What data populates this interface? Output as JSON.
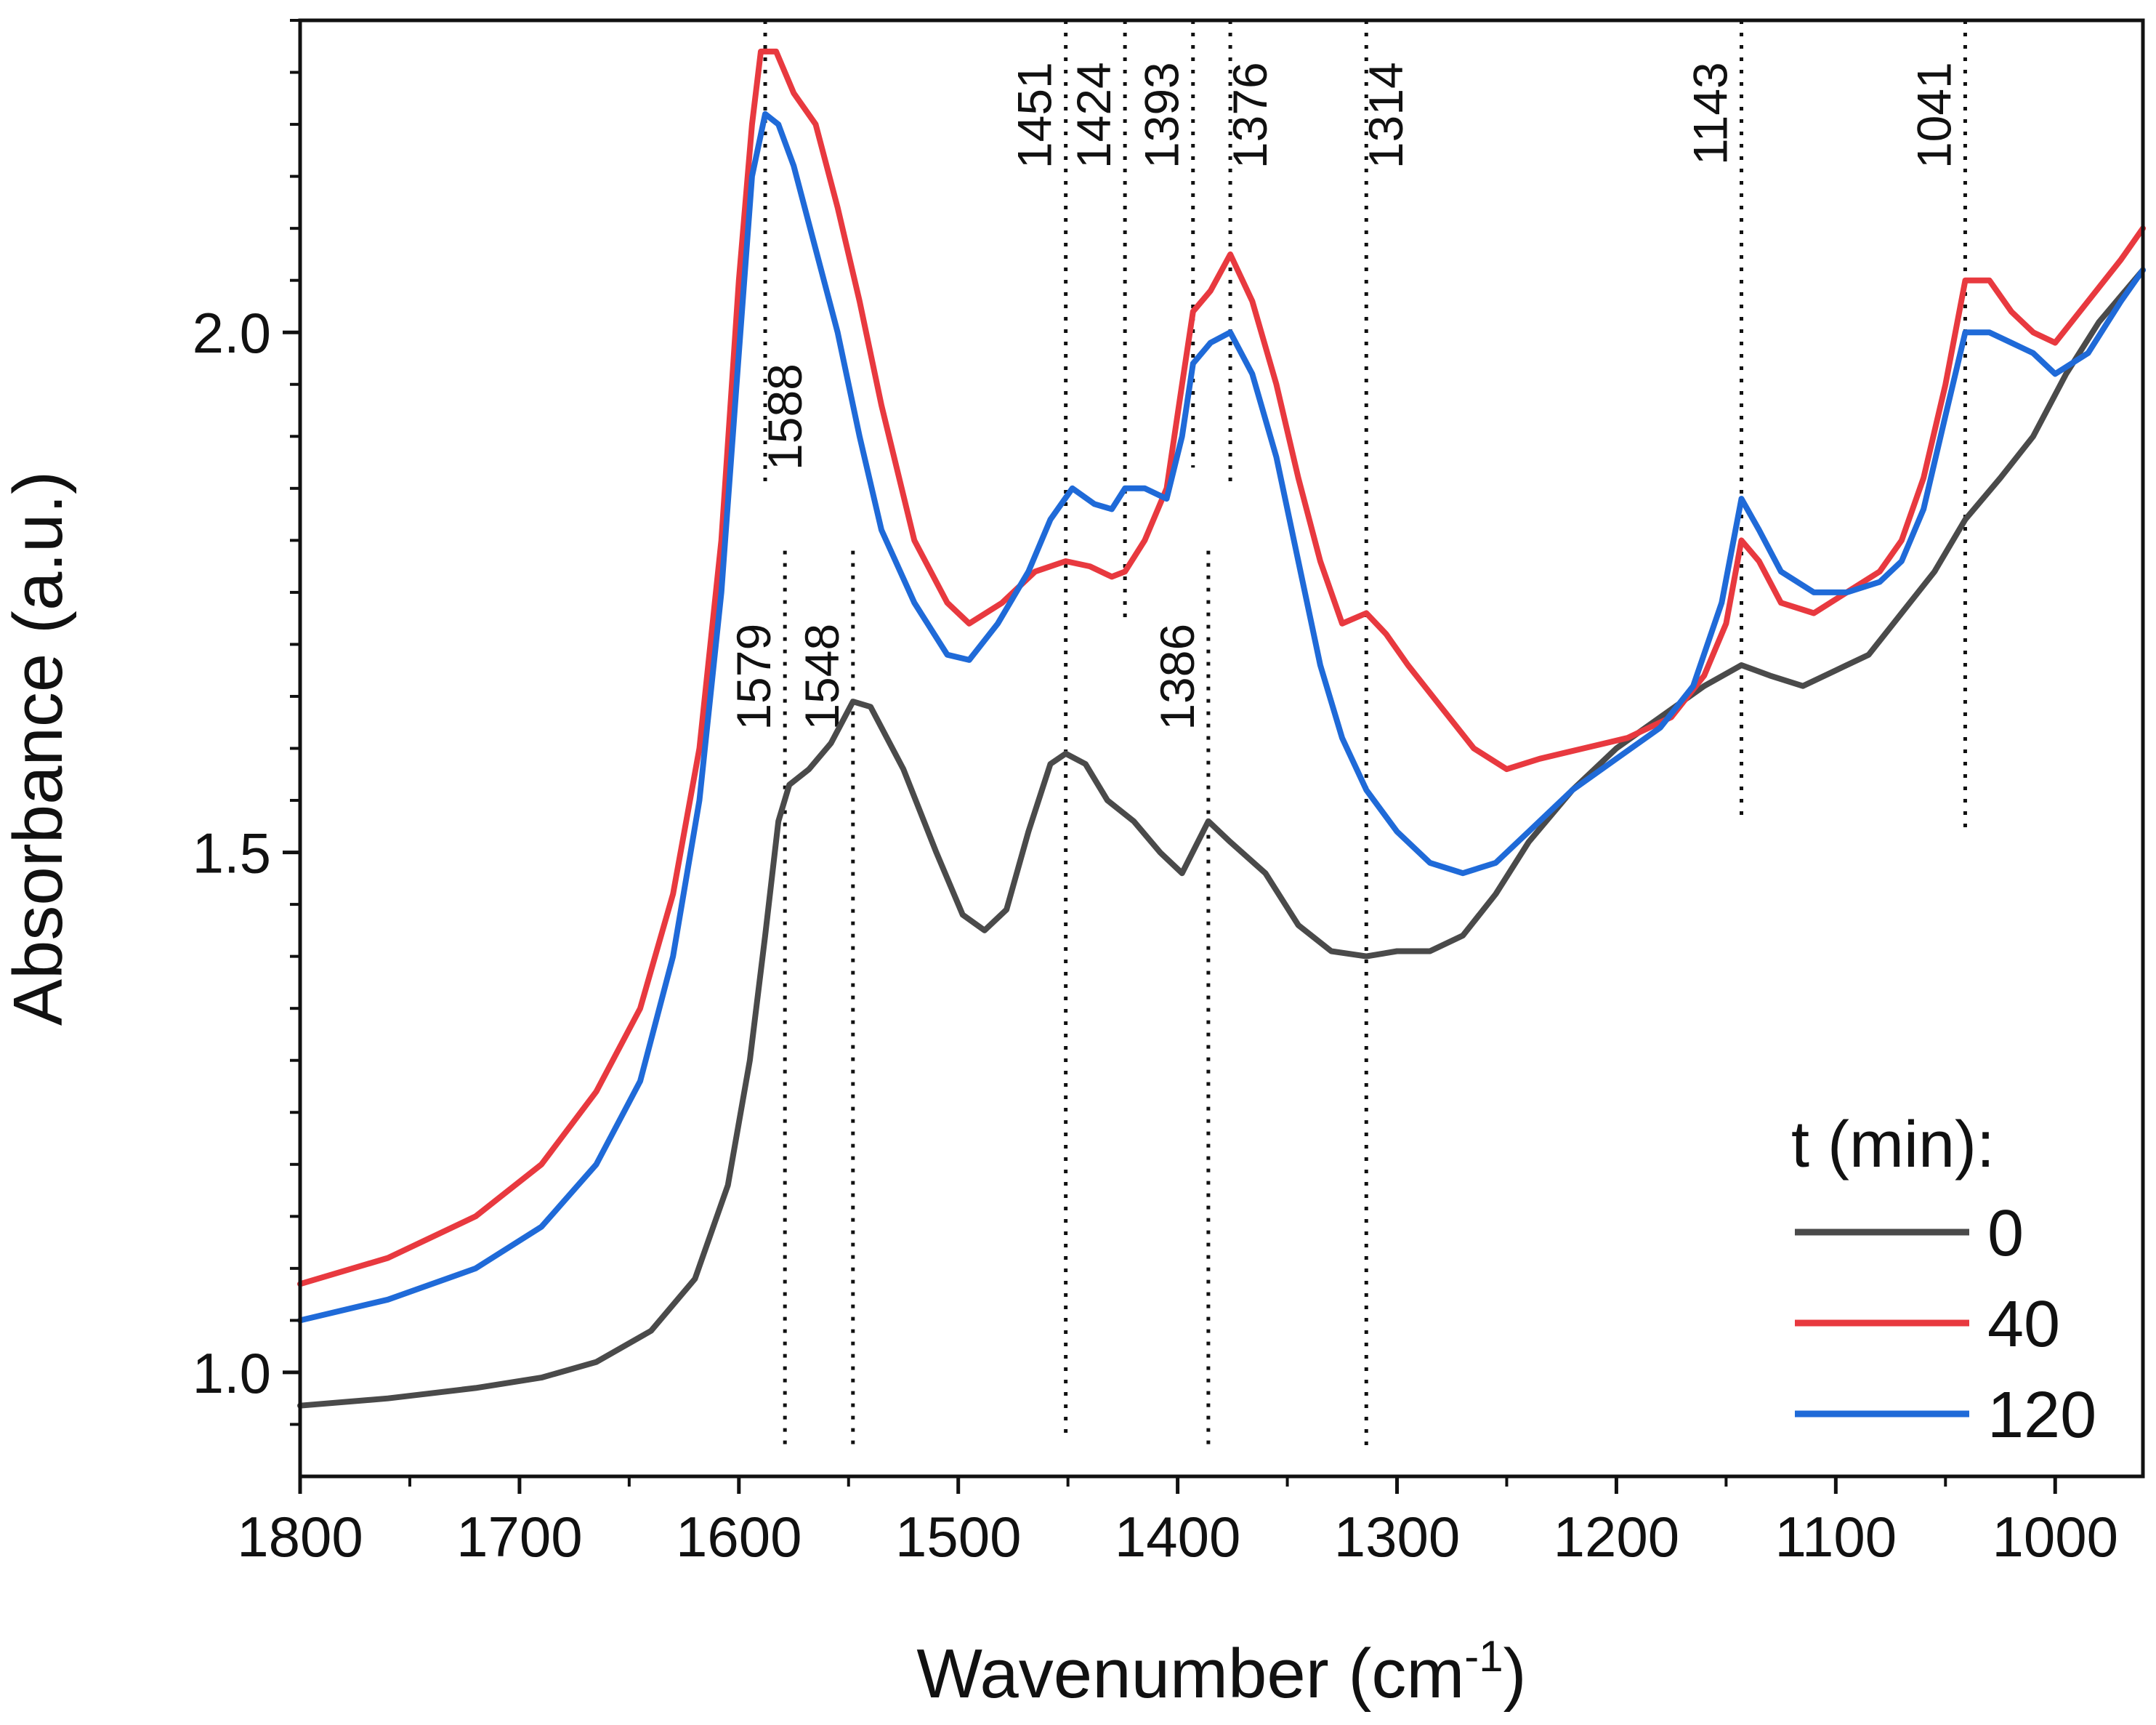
{
  "chart_data": {
    "type": "line",
    "title": "",
    "xlabel": "Wavenumber (cm",
    "xlabel_sup": "-1",
    "xlabel_close": ")",
    "ylabel": "Absorbance (a.u.)",
    "xlim": [
      1800,
      960
    ],
    "ylim": [
      0.9,
      2.3
    ],
    "x_ticks": [
      1800,
      1700,
      1600,
      1500,
      1400,
      1300,
      1200,
      1100,
      1000
    ],
    "y_ticks": [
      {
        "value": 1.0,
        "label": "1.0"
      },
      {
        "value": 1.5,
        "label": "1.5"
      },
      {
        "value": 2.0,
        "label": "2.0"
      }
    ],
    "legend": {
      "title": "t (min):",
      "position": "bottom-right"
    },
    "series": [
      {
        "name": "0",
        "color": "#4a4a4a",
        "points": [
          [
            1800,
            0.968
          ],
          [
            1760,
            0.975
          ],
          [
            1720,
            0.985
          ],
          [
            1690,
            0.995
          ],
          [
            1665,
            1.01
          ],
          [
            1640,
            1.04
          ],
          [
            1620,
            1.09
          ],
          [
            1605,
            1.18
          ],
          [
            1595,
            1.3
          ],
          [
            1588,
            1.42
          ],
          [
            1582,
            1.53
          ],
          [
            1577,
            1.565
          ],
          [
            1568,
            1.58
          ],
          [
            1558,
            1.605
          ],
          [
            1548,
            1.645
          ],
          [
            1540,
            1.64
          ],
          [
            1525,
            1.58
          ],
          [
            1510,
            1.5
          ],
          [
            1498,
            1.44
          ],
          [
            1488,
            1.425
          ],
          [
            1478,
            1.445
          ],
          [
            1468,
            1.52
          ],
          [
            1458,
            1.585
          ],
          [
            1451,
            1.595
          ],
          [
            1442,
            1.585
          ],
          [
            1432,
            1.55
          ],
          [
            1420,
            1.53
          ],
          [
            1408,
            1.5
          ],
          [
            1398,
            1.48
          ],
          [
            1392,
            1.505
          ],
          [
            1386,
            1.53
          ],
          [
            1376,
            1.51
          ],
          [
            1360,
            1.48
          ],
          [
            1345,
            1.43
          ],
          [
            1330,
            1.405
          ],
          [
            1314,
            1.4
          ],
          [
            1300,
            1.405
          ],
          [
            1285,
            1.405
          ],
          [
            1270,
            1.42
          ],
          [
            1255,
            1.46
          ],
          [
            1240,
            1.51
          ],
          [
            1220,
            1.56
          ],
          [
            1200,
            1.6
          ],
          [
            1180,
            1.63
          ],
          [
            1160,
            1.66
          ],
          [
            1143,
            1.68
          ],
          [
            1130,
            1.67
          ],
          [
            1115,
            1.66
          ],
          [
            1100,
            1.675
          ],
          [
            1085,
            1.69
          ],
          [
            1070,
            1.73
          ],
          [
            1055,
            1.77
          ],
          [
            1041,
            1.82
          ],
          [
            1025,
            1.86
          ],
          [
            1010,
            1.9
          ],
          [
            995,
            1.96
          ],
          [
            980,
            2.01
          ],
          [
            960,
            2.06
          ]
        ]
      },
      {
        "name": "40",
        "color": "#e8393f",
        "points": [
          [
            1800,
            1.085
          ],
          [
            1760,
            1.11
          ],
          [
            1720,
            1.15
          ],
          [
            1690,
            1.2
          ],
          [
            1665,
            1.27
          ],
          [
            1645,
            1.35
          ],
          [
            1630,
            1.46
          ],
          [
            1618,
            1.6
          ],
          [
            1608,
            1.8
          ],
          [
            1600,
            2.05
          ],
          [
            1594,
            2.2
          ],
          [
            1590,
            2.27
          ],
          [
            1583,
            2.27
          ],
          [
            1575,
            2.23
          ],
          [
            1565,
            2.2
          ],
          [
            1555,
            2.12
          ],
          [
            1545,
            2.03
          ],
          [
            1535,
            1.93
          ],
          [
            1520,
            1.8
          ],
          [
            1505,
            1.74
          ],
          [
            1495,
            1.72
          ],
          [
            1480,
            1.74
          ],
          [
            1465,
            1.77
          ],
          [
            1451,
            1.78
          ],
          [
            1440,
            1.775
          ],
          [
            1430,
            1.765
          ],
          [
            1424,
            1.77
          ],
          [
            1415,
            1.8
          ],
          [
            1405,
            1.85
          ],
          [
            1398,
            1.95
          ],
          [
            1393,
            2.02
          ],
          [
            1385,
            2.04
          ],
          [
            1376,
            2.075
          ],
          [
            1366,
            2.03
          ],
          [
            1355,
            1.95
          ],
          [
            1345,
            1.86
          ],
          [
            1335,
            1.78
          ],
          [
            1325,
            1.72
          ],
          [
            1314,
            1.73
          ],
          [
            1305,
            1.71
          ],
          [
            1295,
            1.68
          ],
          [
            1280,
            1.64
          ],
          [
            1265,
            1.6
          ],
          [
            1250,
            1.58
          ],
          [
            1235,
            1.59
          ],
          [
            1215,
            1.6
          ],
          [
            1195,
            1.61
          ],
          [
            1175,
            1.63
          ],
          [
            1160,
            1.67
          ],
          [
            1150,
            1.72
          ],
          [
            1143,
            1.8
          ],
          [
            1135,
            1.78
          ],
          [
            1125,
            1.74
          ],
          [
            1110,
            1.73
          ],
          [
            1095,
            1.75
          ],
          [
            1080,
            1.77
          ],
          [
            1070,
            1.8
          ],
          [
            1060,
            1.86
          ],
          [
            1050,
            1.95
          ],
          [
            1041,
            2.05
          ],
          [
            1030,
            2.05
          ],
          [
            1020,
            2.02
          ],
          [
            1010,
            2.0
          ],
          [
            1000,
            1.99
          ],
          [
            985,
            2.03
          ],
          [
            970,
            2.07
          ],
          [
            960,
            2.1
          ]
        ]
      },
      {
        "name": "120",
        "color": "#1f6ad8",
        "points": [
          [
            1800,
            1.05
          ],
          [
            1760,
            1.07
          ],
          [
            1720,
            1.1
          ],
          [
            1690,
            1.14
          ],
          [
            1665,
            1.2
          ],
          [
            1645,
            1.28
          ],
          [
            1630,
            1.4
          ],
          [
            1618,
            1.55
          ],
          [
            1608,
            1.75
          ],
          [
            1600,
            1.98
          ],
          [
            1594,
            2.15
          ],
          [
            1588,
            2.21
          ],
          [
            1582,
            2.2
          ],
          [
            1575,
            2.16
          ],
          [
            1565,
            2.08
          ],
          [
            1555,
            2.0
          ],
          [
            1545,
            1.9
          ],
          [
            1535,
            1.81
          ],
          [
            1520,
            1.74
          ],
          [
            1505,
            1.69
          ],
          [
            1495,
            1.685
          ],
          [
            1482,
            1.72
          ],
          [
            1468,
            1.77
          ],
          [
            1458,
            1.82
          ],
          [
            1448,
            1.85
          ],
          [
            1438,
            1.835
          ],
          [
            1430,
            1.83
          ],
          [
            1424,
            1.85
          ],
          [
            1415,
            1.85
          ],
          [
            1405,
            1.84
          ],
          [
            1398,
            1.9
          ],
          [
            1393,
            1.97
          ],
          [
            1385,
            1.99
          ],
          [
            1376,
            2.0
          ],
          [
            1366,
            1.96
          ],
          [
            1355,
            1.88
          ],
          [
            1345,
            1.78
          ],
          [
            1335,
            1.68
          ],
          [
            1325,
            1.61
          ],
          [
            1314,
            1.56
          ],
          [
            1300,
            1.52
          ],
          [
            1285,
            1.49
          ],
          [
            1270,
            1.48
          ],
          [
            1255,
            1.49
          ],
          [
            1240,
            1.52
          ],
          [
            1220,
            1.56
          ],
          [
            1200,
            1.59
          ],
          [
            1180,
            1.62
          ],
          [
            1165,
            1.66
          ],
          [
            1152,
            1.74
          ],
          [
            1143,
            1.84
          ],
          [
            1135,
            1.81
          ],
          [
            1125,
            1.77
          ],
          [
            1110,
            1.75
          ],
          [
            1095,
            1.75
          ],
          [
            1080,
            1.76
          ],
          [
            1070,
            1.78
          ],
          [
            1060,
            1.83
          ],
          [
            1050,
            1.92
          ],
          [
            1041,
            2.0
          ],
          [
            1030,
            2.0
          ],
          [
            1020,
            1.99
          ],
          [
            1010,
            1.98
          ],
          [
            1000,
            1.96
          ],
          [
            985,
            1.98
          ],
          [
            970,
            2.03
          ],
          [
            960,
            2.06
          ]
        ]
      }
    ],
    "annotations": [
      {
        "label": "1588",
        "x": 1588,
        "y_top": 2.3,
        "y_bottom": 1.85,
        "anchor": "right",
        "y_text": 1.97
      },
      {
        "label": "1579",
        "x": 1579,
        "y_top": 1.79,
        "y_bottom": 0.93,
        "anchor": "left",
        "y_text": 1.72
      },
      {
        "label": "1548",
        "x": 1548,
        "y_top": 1.79,
        "y_bottom": 0.93,
        "anchor": "left",
        "y_text": 1.72
      },
      {
        "label": "1451",
        "x": 1451,
        "y_top": 2.3,
        "y_bottom": 0.94,
        "anchor": "left",
        "y_text": 2.26
      },
      {
        "label": "1424",
        "x": 1424,
        "y_top": 2.3,
        "y_bottom": 1.72,
        "anchor": "left",
        "y_text": 2.26
      },
      {
        "label": "1393",
        "x": 1393,
        "y_top": 2.3,
        "y_bottom": 1.87,
        "anchor": "left",
        "y_text": 2.26
      },
      {
        "label": "1376",
        "x": 1376,
        "y_top": 2.3,
        "y_bottom": 1.85,
        "anchor": "right",
        "y_text": 2.26
      },
      {
        "label": "1386",
        "x": 1386,
        "y_top": 1.79,
        "y_bottom": 0.93,
        "anchor": "left",
        "y_text": 1.72
      },
      {
        "label": "1314",
        "x": 1314,
        "y_top": 2.3,
        "y_bottom": 0.93,
        "anchor": "right",
        "y_text": 2.26
      },
      {
        "label": "1143",
        "x": 1143,
        "y_top": 2.3,
        "y_bottom": 1.53,
        "anchor": "left",
        "y_text": 2.26
      },
      {
        "label": "1041",
        "x": 1041,
        "y_top": 2.3,
        "y_bottom": 1.52,
        "anchor": "left",
        "y_text": 2.26
      }
    ]
  }
}
